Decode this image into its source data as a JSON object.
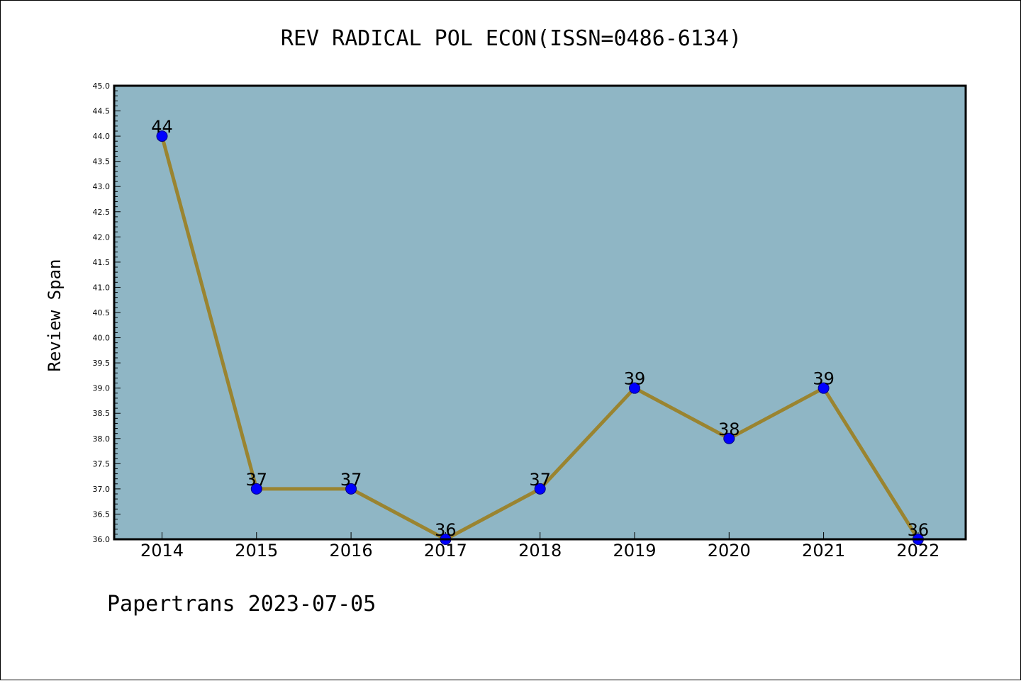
{
  "title": "REV RADICAL POL ECON(ISSN=0486-6134)",
  "footer": "Papertrans 2023-07-05",
  "chart_data": {
    "type": "line",
    "title": "REV RADICAL POL ECON(ISSN=0486-6134)",
    "ylabel": "Review Span",
    "xlabel": "",
    "categories": [
      "2014",
      "2015",
      "2016",
      "2017",
      "2018",
      "2019",
      "2020",
      "2021",
      "2022"
    ],
    "series": [
      {
        "values": [
          44,
          37,
          37,
          36,
          37,
          39,
          38,
          39,
          36
        ]
      }
    ],
    "data_labels": [
      "44",
      "37",
      "37",
      "36",
      "37",
      "39",
      "38",
      "39",
      "36"
    ],
    "ylim": [
      36.0,
      45.0
    ],
    "y_ticks": [
      "36.0",
      "36.5",
      "37.0",
      "37.5",
      "38.0",
      "38.5",
      "39.0",
      "39.5",
      "40.0",
      "40.5",
      "41.0",
      "41.5",
      "42.0",
      "42.5",
      "43.0",
      "43.5",
      "44.0",
      "44.5",
      "45.0"
    ],
    "grid": false,
    "legend": "none",
    "colors": {
      "plot_background": "#8fb6c5",
      "line": "#9a8430",
      "marker": "#0000ff",
      "marker_edge": "#000080"
    }
  }
}
